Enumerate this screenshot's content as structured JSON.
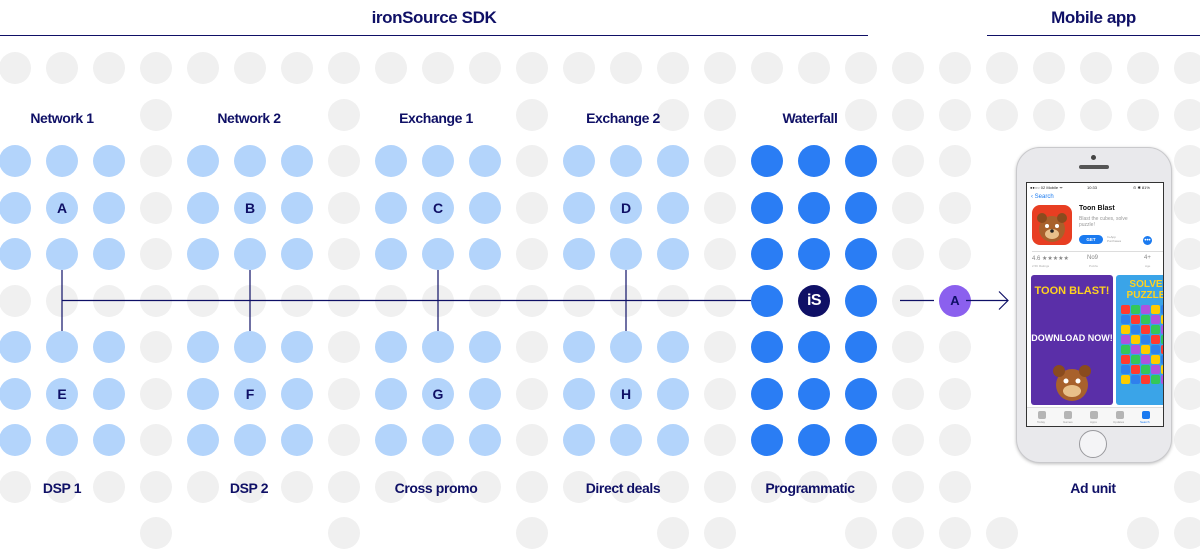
{
  "headers": {
    "sdk_title": "ironSource SDK",
    "mobile_title": "Mobile app"
  },
  "top_labels": [
    "Network 1",
    "Network 2",
    "Exchange 1",
    "Exchange 2",
    "Waterfall"
  ],
  "bottom_labels": [
    "DSP 1",
    "DSP 2",
    "Cross promo",
    "Direct deals",
    "Programmatic",
    "Ad unit"
  ],
  "top_letters": [
    "A",
    "B",
    "C",
    "D"
  ],
  "bottom_letters": [
    "E",
    "F",
    "G",
    "H"
  ],
  "waterfall_center": "iS",
  "output_letter": "A",
  "colors": {
    "navy": "#0f1066",
    "light_blue": "#b3d4fb",
    "blue": "#2a7df4",
    "grey": "#f0f0f0",
    "purple": "#8b60ee"
  },
  "phone": {
    "carrier": "●●○○ 02 Mobile ᯤ",
    "time": "10:33",
    "battery": "⊙ ✱ 81%",
    "back": "‹ Search",
    "app_name": "Toon Blast",
    "app_subtitle": "Blast the cubes, solve puzzle!",
    "get": "GET",
    "in_app": "In-App Purchases",
    "rating": "4.6 ★★★★★",
    "ratings_count": "2.5K Ratings",
    "rank": "No9",
    "rank_sub": "Puzzle",
    "age": "4+",
    "age_sub": "Age",
    "shot1_title": "TOON BLAST!",
    "shot1_text": "DOWNLOAD NOW!",
    "shot2_title": "SOLVE PUZZLE",
    "tabs": [
      "Today",
      "Games",
      "Apps",
      "Updates",
      "Search"
    ]
  }
}
